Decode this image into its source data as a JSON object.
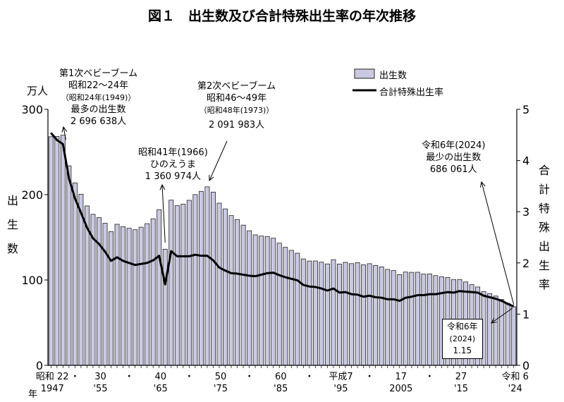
{
  "title": "図１　出生数及び合計特殊出生率の年次推移",
  "chart_data": {
    "type": "bar+line",
    "title": "図１　出生数及び合計特殊出生率の年次推移",
    "left_axis": {
      "unit": "万人",
      "label": "出生数",
      "range": [
        0,
        300
      ],
      "ticks": [
        0,
        100,
        200,
        300
      ]
    },
    "right_axis": {
      "label": "合計特殊出生率",
      "range": [
        0,
        5
      ],
      "ticks": [
        0,
        1,
        2,
        3,
        4,
        5
      ]
    },
    "x_axis": {
      "unit": "年",
      "tick_labels": [
        {
          "year": 1947,
          "era": "昭和 22",
          "western": "1947"
        },
        {
          "year": 1955,
          "era": "30",
          "western": "'55"
        },
        {
          "year": 1965,
          "era": "40",
          "western": "'65"
        },
        {
          "year": 1975,
          "era": "50",
          "western": "'75"
        },
        {
          "year": 1985,
          "era": "60",
          "western": "'85"
        },
        {
          "year": 1995,
          "era": "平成7",
          "western": "'95"
        },
        {
          "year": 2005,
          "era": "17",
          "western": "2005"
        },
        {
          "year": 2015,
          "era": "27",
          "western": "'15"
        },
        {
          "year": 2024,
          "era": "令和 6",
          "western": "'24"
        }
      ],
      "dot_years": [
        1951,
        1960,
        1970,
        1980,
        1990,
        2000,
        2010
      ]
    },
    "legend": {
      "placement": "top-right",
      "bar": "出生数",
      "line": "合計特殊出生率"
    },
    "years": [
      1947,
      1948,
      1949,
      1950,
      1951,
      1952,
      1953,
      1954,
      1955,
      1956,
      1957,
      1958,
      1959,
      1960,
      1961,
      1962,
      1963,
      1964,
      1965,
      1966,
      1967,
      1968,
      1969,
      1970,
      1971,
      1972,
      1973,
      1974,
      1975,
      1976,
      1977,
      1978,
      1979,
      1980,
      1981,
      1982,
      1983,
      1984,
      1985,
      1986,
      1987,
      1988,
      1989,
      1990,
      1991,
      1992,
      1993,
      1994,
      1995,
      1996,
      1997,
      1998,
      1999,
      2000,
      2001,
      2002,
      2003,
      2004,
      2005,
      2006,
      2007,
      2008,
      2009,
      2010,
      2011,
      2012,
      2013,
      2014,
      2015,
      2016,
      2017,
      2018,
      2019,
      2020,
      2021,
      2022,
      2023,
      2024
    ],
    "series": [
      {
        "name": "出生数",
        "type": "bar",
        "axis": "left",
        "values": [
          267.9,
          268.2,
          269.7,
          233.8,
          213.8,
          200.5,
          186.8,
          177.0,
          173.1,
          166.5,
          156.7,
          165.3,
          162.6,
          160.6,
          158.9,
          161.9,
          166.0,
          171.7,
          182.4,
          136.1,
          193.6,
          187.2,
          188.9,
          193.4,
          200.1,
          203.9,
          209.2,
          203.0,
          190.1,
          183.3,
          175.5,
          170.9,
          164.3,
          157.7,
          152.9,
          151.5,
          150.9,
          149.0,
          143.2,
          138.3,
          134.7,
          131.4,
          124.7,
          122.2,
          122.3,
          120.9,
          118.8,
          123.8,
          118.7,
          120.7,
          119.2,
          120.3,
          117.8,
          119.1,
          117.1,
          115.4,
          112.4,
          111.1,
          106.3,
          109.3,
          109.0,
          109.1,
          107.0,
          107.1,
          105.1,
          103.7,
          103.0,
          100.4,
          100.6,
          97.7,
          94.6,
          91.8,
          86.5,
          84.1,
          81.2,
          77.1,
          72.7,
          68.6
        ]
      },
      {
        "name": "合計特殊出生率",
        "type": "line",
        "axis": "right",
        "values": [
          4.54,
          4.4,
          4.32,
          3.65,
          3.26,
          2.98,
          2.69,
          2.48,
          2.37,
          2.22,
          2.04,
          2.11,
          2.04,
          2.0,
          1.96,
          1.98,
          2.0,
          2.05,
          2.14,
          1.58,
          2.23,
          2.13,
          2.13,
          2.13,
          2.16,
          2.14,
          2.14,
          2.05,
          1.91,
          1.85,
          1.8,
          1.79,
          1.77,
          1.75,
          1.74,
          1.77,
          1.8,
          1.81,
          1.76,
          1.72,
          1.69,
          1.66,
          1.57,
          1.54,
          1.53,
          1.5,
          1.46,
          1.5,
          1.42,
          1.43,
          1.39,
          1.38,
          1.34,
          1.36,
          1.33,
          1.32,
          1.29,
          1.29,
          1.26,
          1.32,
          1.34,
          1.37,
          1.37,
          1.39,
          1.39,
          1.41,
          1.43,
          1.42,
          1.45,
          1.44,
          1.43,
          1.42,
          1.36,
          1.33,
          1.3,
          1.26,
          1.2,
          1.15
        ]
      }
    ],
    "colors": {
      "bar_fill": "#c9c9e2",
      "bar_stroke": "#222222",
      "line": "#000000"
    },
    "annotations": {
      "boom1": [
        "第1次ベビーブーム",
        "昭和22～24年",
        "（昭和24年(1949)）",
        "最多の出生数",
        "2 696 638人"
      ],
      "boom2": [
        "第2次ベビーブーム",
        "昭和46～49年",
        "（昭和48年(1973)）",
        "2 091 983人"
      ],
      "hinoe": [
        "昭和41年(1966)",
        "ひのえうま",
        "1 360 974人"
      ],
      "min": [
        "令和6年(2024)",
        "最少の出生数",
        "686 061人"
      ],
      "tfr_box": [
        "令和6年",
        "(2024)",
        "1.15"
      ]
    }
  }
}
